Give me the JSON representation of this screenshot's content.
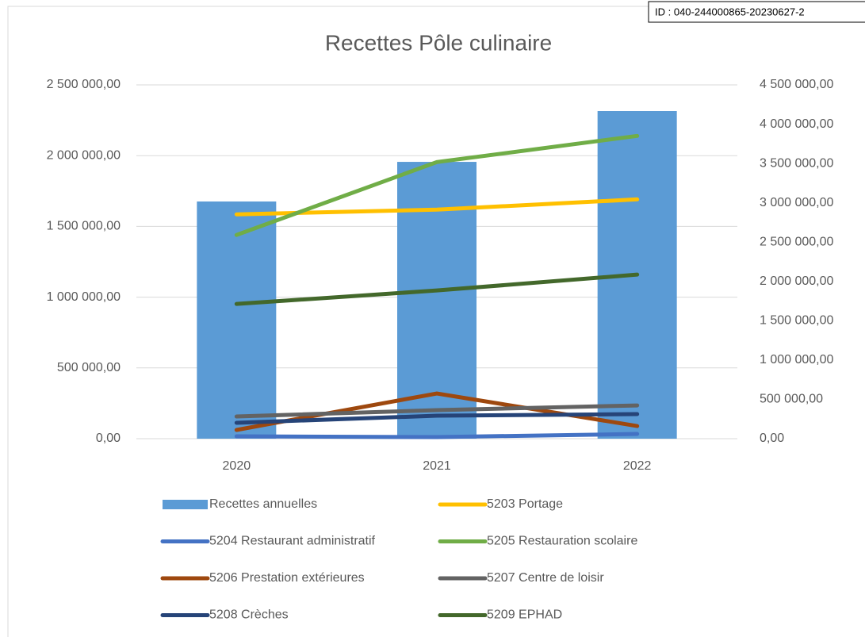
{
  "chart_data": {
    "type": "bar-line",
    "title": "Recettes Pôle culinaire",
    "annotation": "ID : 040-244000865-20230627-2",
    "categories": [
      "2020",
      "2021",
      "2022"
    ],
    "series": [
      {
        "name": "Recettes annuelles",
        "type": "bar",
        "color": "#5b9bd5",
        "values": [
          1676000,
          1956000,
          2315000
        ]
      },
      {
        "name": "5203 Portage",
        "type": "line",
        "axis": "y2",
        "color": "#ffc000",
        "values": [
          2853000,
          2913000,
          3044000
        ]
      },
      {
        "name": "5204 Restaurant administratif",
        "type": "line",
        "axis": "y2",
        "color": "#4472c4",
        "values": [
          30000,
          20000,
          60000
        ]
      },
      {
        "name": "5205 Restauration scolaire",
        "type": "line",
        "axis": "y2",
        "color": "#70ad47",
        "values": [
          2591000,
          3518000,
          3851000
        ]
      },
      {
        "name": "5206 Prestation extérieures",
        "type": "line",
        "axis": "y2",
        "color": "#9e480e",
        "values": [
          111000,
          575000,
          161000
        ]
      },
      {
        "name": "5207 Centre de loisir",
        "type": "line",
        "axis": "y2",
        "color": "#636363",
        "values": [
          282000,
          363000,
          423000
        ]
      },
      {
        "name": "5208 Crèches",
        "type": "line",
        "axis": "y2",
        "color": "#264478",
        "values": [
          202000,
          292000,
          313000
        ]
      },
      {
        "name": "5209 EPHAD",
        "type": "line",
        "axis": "y2",
        "color": "#43682b",
        "values": [
          1714000,
          1885000,
          2087000
        ]
      }
    ],
    "ylim": [
      0,
      2500000
    ],
    "yticks": [
      {
        "value": 0,
        "label": "0,00"
      },
      {
        "value": 500000,
        "label": "500 000,00"
      },
      {
        "value": 1000000,
        "label": "1 000 000,00"
      },
      {
        "value": 1500000,
        "label": "1 500 000,00"
      },
      {
        "value": 2000000,
        "label": "2 000 000,00"
      },
      {
        "value": 2500000,
        "label": "2 500 000,00"
      }
    ],
    "y2lim": [
      0,
      4500000
    ],
    "y2ticks": [
      {
        "value": 0,
        "label": "0,00"
      },
      {
        "value": 500000,
        "label": "500 000,00"
      },
      {
        "value": 1000000,
        "label": "1 000 000,00"
      },
      {
        "value": 1500000,
        "label": "1 500 000,00"
      },
      {
        "value": 2000000,
        "label": "2 000 000,00"
      },
      {
        "value": 2500000,
        "label": "2 500 000,00"
      },
      {
        "value": 3000000,
        "label": "3 000 000,00"
      },
      {
        "value": 3500000,
        "label": "3 500 000,00"
      },
      {
        "value": 4000000,
        "label": "4 000 000,00"
      },
      {
        "value": 4500000,
        "label": "4 500 000,00"
      }
    ],
    "grid": true,
    "legend": "bottom"
  }
}
